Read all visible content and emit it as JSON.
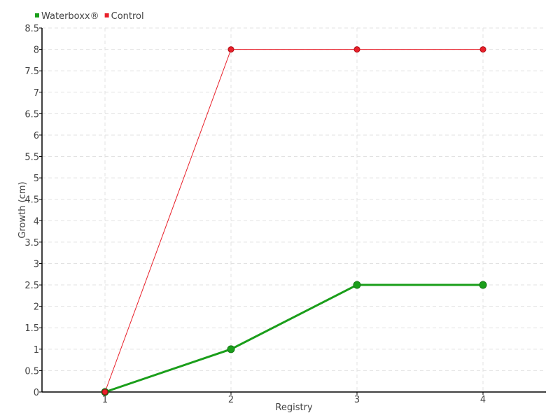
{
  "chart_data": {
    "type": "line",
    "title": "",
    "xlabel": "Registry",
    "ylabel": "Growth (cm)",
    "categories": [
      "1",
      "2",
      "3",
      "4"
    ],
    "ylim": [
      0,
      8.5
    ],
    "yticks": [
      "0",
      "0.5",
      "1",
      "1.5",
      "2",
      "2.5",
      "3",
      "3.5",
      "4",
      "4.5",
      "5",
      "5.5",
      "6",
      "6.5",
      "7",
      "7.5",
      "8",
      "8.5"
    ],
    "grid": true,
    "legend_position": "top-left",
    "series": [
      {
        "name": "Waterboxx®",
        "color": "#1a9e1a",
        "values": [
          0,
          1,
          2.5,
          2.5
        ]
      },
      {
        "name": "Control",
        "color": "#e8202a",
        "values": [
          0,
          8,
          8,
          8
        ]
      }
    ]
  }
}
